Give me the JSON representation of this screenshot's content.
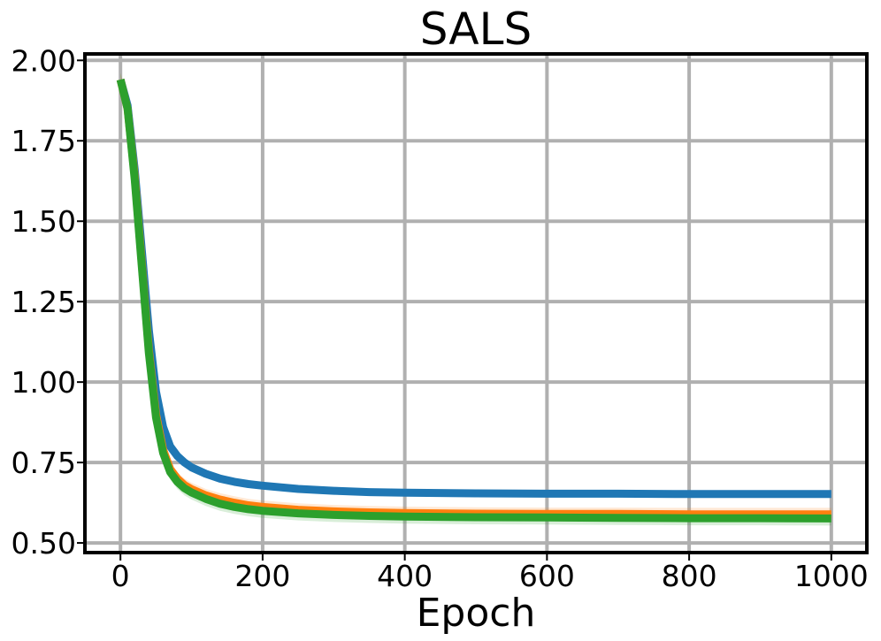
{
  "chart_data": {
    "type": "line",
    "title": "SALS",
    "xlabel": "Epoch",
    "ylabel": "",
    "xlim": [
      -50,
      1050
    ],
    "ylim": [
      0.47,
      2.02
    ],
    "xticks": [
      0,
      200,
      400,
      600,
      800,
      1000
    ],
    "yticks": [
      0.5,
      0.75,
      1.0,
      1.25,
      1.5,
      1.75,
      2.0
    ],
    "xtick_labels": [
      "0",
      "200",
      "400",
      "600",
      "800",
      "1000"
    ],
    "ytick_labels": [
      "0.50",
      "0.75",
      "1.00",
      "1.25",
      "1.50",
      "1.75",
      "2.00"
    ],
    "grid": true,
    "legend": "none",
    "series": [
      {
        "color": "#1f77b4",
        "band": 0.005,
        "x": [
          0,
          10,
          20,
          30,
          40,
          50,
          60,
          70,
          80,
          90,
          100,
          120,
          140,
          160,
          180,
          200,
          250,
          300,
          350,
          400,
          500,
          600,
          700,
          800,
          900,
          1000
        ],
        "y": [
          1.94,
          1.86,
          1.66,
          1.41,
          1.16,
          0.97,
          0.86,
          0.8,
          0.77,
          0.75,
          0.735,
          0.715,
          0.7,
          0.69,
          0.683,
          0.678,
          0.668,
          0.662,
          0.658,
          0.656,
          0.654,
          0.653,
          0.653,
          0.652,
          0.652,
          0.652
        ]
      },
      {
        "color": "#ff7f0e",
        "band": 0.02,
        "x": [
          0,
          10,
          20,
          30,
          40,
          50,
          60,
          70,
          80,
          90,
          100,
          120,
          140,
          160,
          180,
          200,
          250,
          300,
          350,
          400,
          500,
          600,
          700,
          800,
          900,
          1000
        ],
        "y": [
          1.94,
          1.85,
          1.64,
          1.37,
          1.1,
          0.9,
          0.79,
          0.73,
          0.7,
          0.68,
          0.667,
          0.648,
          0.635,
          0.625,
          0.617,
          0.612,
          0.603,
          0.598,
          0.595,
          0.593,
          0.591,
          0.59,
          0.59,
          0.589,
          0.589,
          0.589
        ]
      },
      {
        "color": "#2ca02c",
        "band": 0.022,
        "x": [
          0,
          10,
          20,
          30,
          40,
          50,
          60,
          70,
          80,
          90,
          100,
          120,
          140,
          160,
          180,
          200,
          250,
          300,
          350,
          400,
          500,
          600,
          700,
          800,
          900,
          1000
        ],
        "y": [
          1.94,
          1.85,
          1.63,
          1.36,
          1.09,
          0.89,
          0.78,
          0.72,
          0.69,
          0.67,
          0.657,
          0.637,
          0.622,
          0.612,
          0.605,
          0.6,
          0.592,
          0.587,
          0.584,
          0.582,
          0.58,
          0.579,
          0.578,
          0.577,
          0.577,
          0.576
        ]
      }
    ]
  }
}
